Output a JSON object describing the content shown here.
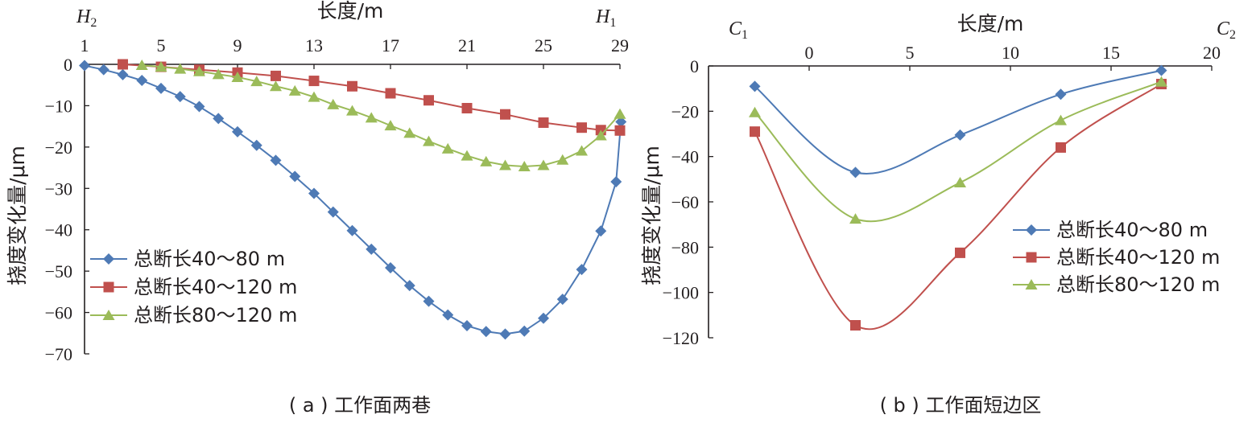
{
  "chart_data": [
    {
      "type": "line",
      "caption": "( a ) 工作面两巷",
      "xlabel": "长度/m",
      "ylabel": "挠度变化量/μm",
      "end_left": "H",
      "end_left_sub": "2",
      "end_right": "H",
      "end_right_sub": "1",
      "x_ticks": [
        "1",
        "5",
        "9",
        "13",
        "17",
        "21",
        "25",
        "29"
      ],
      "y_ticks": [
        "0",
        "−10",
        "−20",
        "−30",
        "−40",
        "−50",
        "−60",
        "−70"
      ],
      "xlim": [
        1,
        29
      ],
      "ylim": [
        -70,
        0
      ],
      "legend_position": "bottom-left",
      "series": [
        {
          "name": "总断长40～80 m",
          "color": "#4e7ab5",
          "marker": "diamond",
          "x": [
            1,
            2,
            3,
            4,
            5,
            6,
            7,
            8,
            9,
            10,
            11,
            12,
            13,
            14,
            15,
            16,
            17,
            18,
            19,
            20,
            21,
            22,
            23,
            24,
            25,
            26,
            27,
            28,
            28.8
          ],
          "y": [
            -0.3,
            -1.3,
            -2.5,
            -3.9,
            -5.8,
            -7.8,
            -10.2,
            -13.1,
            -16.3,
            -19.6,
            -23.2,
            -27.1,
            -31.2,
            -35.7,
            -40.2,
            -44.7,
            -49.2,
            -53.5,
            -57.3,
            -60.6,
            -63.2,
            -64.6,
            -65.2,
            -64.5,
            -61.4,
            -56.8,
            -49.6,
            -40.3,
            -28.4
          ],
          "x_extra": [
            28.8
          ],
          "y_extra": [
            -13.9
          ]
        },
        {
          "name": "总断长40～120 m",
          "color": "#c0504d",
          "marker": "square",
          "x": [
            3,
            5,
            7,
            9,
            11,
            13,
            15,
            17,
            19,
            21,
            23,
            25,
            27,
            28,
            29
          ],
          "y": [
            0,
            -0.6,
            -1.3,
            -2.0,
            -2.8,
            -4.0,
            -5.3,
            -7.0,
            -8.7,
            -10.6,
            -12.1,
            -14.1,
            -15.3,
            -15.9,
            -16.0
          ],
          "x_extra": [],
          "y_extra": []
        },
        {
          "name": "总断长80～120 m",
          "color": "#9bbb59",
          "marker": "triangle",
          "x": [
            4,
            5,
            6,
            7,
            8,
            9,
            10,
            11,
            12,
            13,
            14,
            15,
            16,
            17,
            18,
            19,
            20,
            21,
            22,
            23,
            24,
            25,
            26,
            27,
            28,
            29
          ],
          "y": [
            -0.2,
            -0.6,
            -1.1,
            -1.7,
            -2.4,
            -3.1,
            -4.1,
            -5.3,
            -6.4,
            -7.9,
            -9.7,
            -11.2,
            -12.9,
            -14.8,
            -16.6,
            -18.6,
            -20.4,
            -22.1,
            -23.5,
            -24.4,
            -24.7,
            -24.4,
            -23.1,
            -20.9,
            -17.2,
            -12.0
          ],
          "x_extra": [],
          "y_extra": []
        }
      ]
    },
    {
      "type": "line",
      "caption": "( b ) 工作面短边区",
      "xlabel": "长度/m",
      "ylabel": "挠度变化量/μm",
      "end_left": "C",
      "end_left_sub": "1",
      "end_right": "C",
      "end_right_sub": "2",
      "x_ticks": [
        "0",
        "5",
        "10",
        "15",
        "20"
      ],
      "y_ticks": [
        "0",
        "−20",
        "−40",
        "−60",
        "−80",
        "−100",
        "−120"
      ],
      "xlim": [
        -5,
        20
      ],
      "ylim": [
        -120,
        0
      ],
      "legend_position": "right",
      "series": [
        {
          "name": "总断长40～80 m",
          "color": "#4e7ab5",
          "marker": "diamond",
          "x": [
            -2.7,
            2.3,
            7.5,
            12.5,
            17.5
          ],
          "y": [
            -9,
            -47,
            -30.5,
            -12.5,
            -2
          ]
        },
        {
          "name": "总断长40～120 m",
          "color": "#c0504d",
          "marker": "square",
          "x": [
            -2.7,
            2.3,
            7.5,
            12.5,
            17.5
          ],
          "y": [
            -29,
            -114.5,
            -82.5,
            -36,
            -8
          ]
        },
        {
          "name": "总断长80～120 m",
          "color": "#9bbb59",
          "marker": "triangle",
          "x": [
            -2.7,
            2.3,
            7.5,
            12.5,
            17.5
          ],
          "y": [
            -20.5,
            -67.5,
            -51.5,
            -24,
            -7
          ]
        }
      ]
    }
  ]
}
